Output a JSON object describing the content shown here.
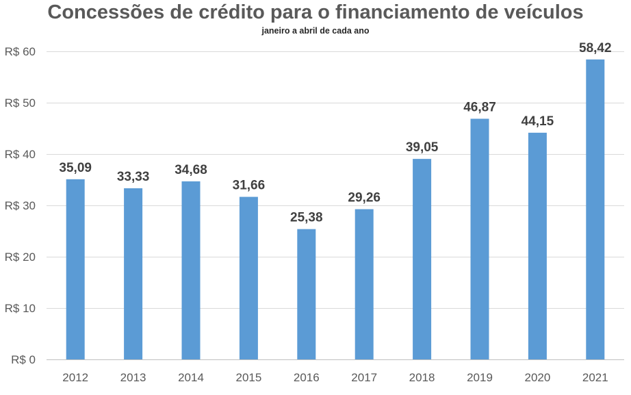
{
  "chart_data": {
    "type": "bar",
    "title": "Concessões de crédito para o financiamento de veículos",
    "subtitle": "janeiro a abril de cada ano",
    "xlabel": "",
    "ylabel": "",
    "categories": [
      "2012",
      "2013",
      "2014",
      "2015",
      "2016",
      "2017",
      "2018",
      "2019",
      "2020",
      "2021"
    ],
    "values": [
      35.09,
      33.33,
      34.68,
      31.66,
      25.38,
      29.26,
      39.05,
      46.87,
      44.15,
      58.42
    ],
    "value_labels": [
      "35,09",
      "33,33",
      "34,68",
      "31,66",
      "25,38",
      "29,26",
      "39,05",
      "46,87",
      "44,15",
      "58,42"
    ],
    "ylim": [
      0,
      60
    ],
    "yticks": [
      0,
      10,
      20,
      30,
      40,
      50,
      60
    ],
    "ytick_labels": [
      "R$ 0",
      "R$ 10",
      "R$ 20",
      "R$ 30",
      "R$ 40",
      "R$ 50",
      "R$ 60"
    ],
    "grid": true,
    "bar_color": "#5b9bd5",
    "grid_color": "#d9d9d9"
  }
}
